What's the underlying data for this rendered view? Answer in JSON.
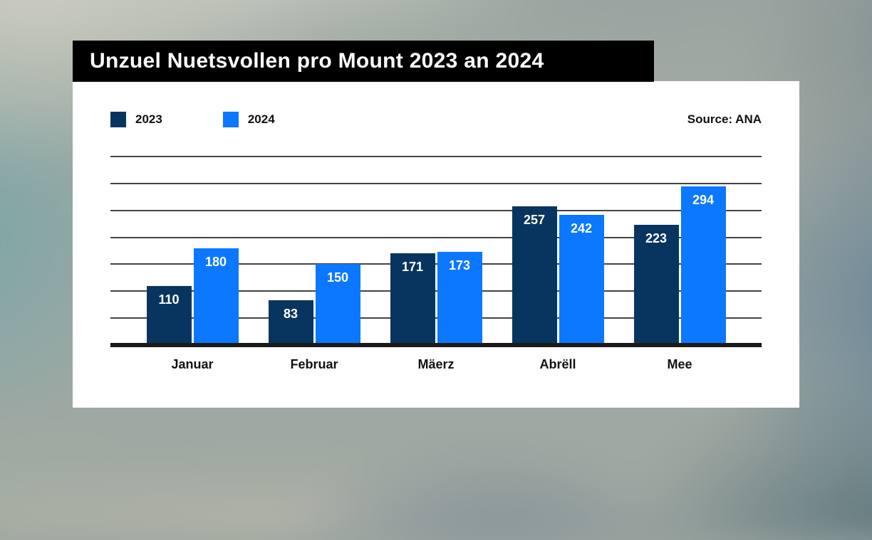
{
  "title": "Unzuel Nuetsvollen pro Mount 2023 an 2024",
  "source": "Source: ANA",
  "colors": {
    "title_bar_bg": "#000000",
    "card_bg": "#ffffff",
    "gridline": "#434343",
    "axis_line": "#1b1b1b"
  },
  "chart_data": {
    "type": "bar",
    "title": "Unzuel Nuetsvollen pro Mount 2023 an 2024",
    "categories": [
      "Januar",
      "Februar",
      "Mäerz",
      "Abrëll",
      "Mee"
    ],
    "series": [
      {
        "name": "2023",
        "color": "#08355f",
        "values": [
          110,
          83,
          171,
          257,
          223
        ]
      },
      {
        "name": "2024",
        "color": "#0b78ff",
        "values": [
          180,
          150,
          173,
          242,
          294
        ]
      }
    ],
    "xlabel": "",
    "ylabel": "",
    "ylim": [
      0,
      350
    ],
    "gridline_step": 50,
    "grid": true,
    "legend_position": "top-left",
    "value_labels": true,
    "source": "Source: ANA"
  }
}
